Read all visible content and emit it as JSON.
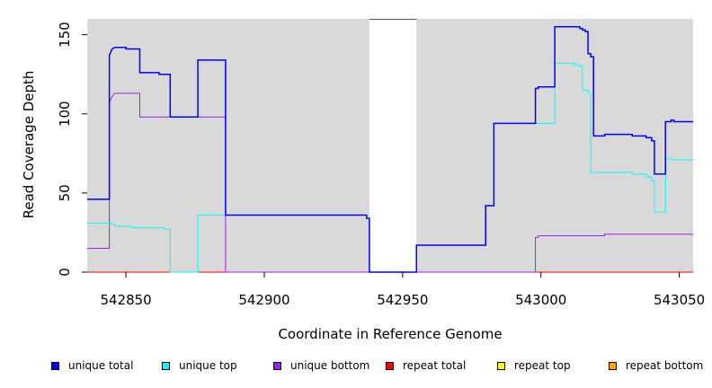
{
  "chart_data": {
    "type": "line",
    "title": "",
    "xlabel": "Coordinate in Reference Genome",
    "ylabel": "Read Coverage Depth",
    "xlim": [
      542836,
      543055
    ],
    "ylim": [
      0,
      160
    ],
    "xticks": [
      542850,
      542900,
      542950,
      543000,
      543050
    ],
    "yticks": [
      0,
      50,
      100,
      150
    ],
    "background_color": "#d9d9d9",
    "gap_region": [
      542938,
      542955
    ],
    "series": [
      {
        "name": "unique total",
        "color": "#0000ff",
        "points": [
          [
            542836,
            46
          ],
          [
            542844,
            46
          ],
          [
            542844,
            137
          ],
          [
            542845,
            141
          ],
          [
            542846,
            142
          ],
          [
            542850,
            142
          ],
          [
            542850,
            141
          ],
          [
            542855,
            141
          ],
          [
            542855,
            126
          ],
          [
            542862,
            126
          ],
          [
            542862,
            125
          ],
          [
            542866,
            125
          ],
          [
            542866,
            98
          ],
          [
            542876,
            98
          ],
          [
            542876,
            134
          ],
          [
            542886,
            134
          ],
          [
            542886,
            36
          ],
          [
            542937,
            36
          ],
          [
            542937,
            34
          ],
          [
            542938,
            34
          ],
          [
            542938,
            0
          ],
          [
            542955,
            0
          ],
          [
            542955,
            17
          ],
          [
            542980,
            17
          ],
          [
            542980,
            42
          ],
          [
            542983,
            42
          ],
          [
            542983,
            94
          ],
          [
            542998,
            94
          ],
          [
            542998,
            116
          ],
          [
            542999,
            116
          ],
          [
            542999,
            117
          ],
          [
            543005,
            117
          ],
          [
            543005,
            155
          ],
          [
            543014,
            155
          ],
          [
            543014,
            154
          ],
          [
            543015,
            154
          ],
          [
            543015,
            153
          ],
          [
            543016,
            153
          ],
          [
            543016,
            152
          ],
          [
            543017,
            152
          ],
          [
            543017,
            138
          ],
          [
            543018,
            138
          ],
          [
            543018,
            136
          ],
          [
            543019,
            136
          ],
          [
            543019,
            86
          ],
          [
            543023,
            86
          ],
          [
            543023,
            87
          ],
          [
            543033,
            87
          ],
          [
            543033,
            86
          ],
          [
            543038,
            86
          ],
          [
            543038,
            85
          ],
          [
            543040,
            85
          ],
          [
            543040,
            83
          ],
          [
            543041,
            83
          ],
          [
            543041,
            62
          ],
          [
            543045,
            62
          ],
          [
            543045,
            95
          ],
          [
            543047,
            95
          ],
          [
            543047,
            96
          ],
          [
            543048,
            96
          ],
          [
            543048,
            95
          ],
          [
            543055,
            95
          ]
        ]
      },
      {
        "name": "unique top",
        "color": "#00ffff",
        "points": [
          [
            542836,
            31
          ],
          [
            542844,
            31
          ],
          [
            542844,
            31
          ],
          [
            542846,
            30
          ],
          [
            542846,
            29
          ],
          [
            542850,
            29
          ],
          [
            542850,
            29
          ],
          [
            542852,
            29
          ],
          [
            542852,
            28
          ],
          [
            542864,
            28
          ],
          [
            542864,
            27
          ],
          [
            542866,
            27
          ],
          [
            542866,
            0
          ],
          [
            542876,
            0
          ],
          [
            542876,
            36
          ],
          [
            542886,
            36
          ],
          [
            542886,
            36
          ],
          [
            542937,
            36
          ],
          [
            542937,
            34
          ],
          [
            542938,
            34
          ],
          [
            542938,
            0
          ],
          [
            542955,
            0
          ],
          [
            542955,
            17
          ],
          [
            542980,
            17
          ],
          [
            542980,
            42
          ],
          [
            542983,
            42
          ],
          [
            542983,
            94
          ],
          [
            542998,
            94
          ],
          [
            542998,
            94
          ],
          [
            543005,
            94
          ],
          [
            543005,
            132
          ],
          [
            543012,
            132
          ],
          [
            543012,
            131
          ],
          [
            543014,
            131
          ],
          [
            543014,
            130
          ],
          [
            543015,
            130
          ],
          [
            543015,
            115
          ],
          [
            543017,
            115
          ],
          [
            543017,
            113
          ],
          [
            543018,
            113
          ],
          [
            543018,
            63
          ],
          [
            543033,
            63
          ],
          [
            543033,
            62
          ],
          [
            543038,
            62
          ],
          [
            543038,
            60
          ],
          [
            543040,
            60
          ],
          [
            543040,
            58
          ],
          [
            543041,
            58
          ],
          [
            543041,
            38
          ],
          [
            543045,
            38
          ],
          [
            543045,
            72
          ],
          [
            543047,
            72
          ],
          [
            543047,
            71
          ],
          [
            543055,
            71
          ]
        ]
      },
      {
        "name": "unique bottom",
        "color": "#a020f0",
        "points": [
          [
            542836,
            15
          ],
          [
            542844,
            15
          ],
          [
            542844,
            107
          ],
          [
            542845,
            111
          ],
          [
            542846,
            113
          ],
          [
            542855,
            113
          ],
          [
            542855,
            98
          ],
          [
            542886,
            98
          ],
          [
            542886,
            0
          ],
          [
            542998,
            0
          ],
          [
            542998,
            22
          ],
          [
            542999,
            22
          ],
          [
            542999,
            23
          ],
          [
            543023,
            23
          ],
          [
            543023,
            24
          ],
          [
            543055,
            24
          ]
        ]
      },
      {
        "name": "repeat total",
        "color": "#ff0000",
        "points": [
          [
            542836,
            0
          ],
          [
            543055,
            0
          ]
        ]
      },
      {
        "name": "repeat top",
        "color": "#ffff00",
        "points": [
          [
            542836,
            0
          ],
          [
            543055,
            0
          ]
        ]
      },
      {
        "name": "repeat bottom",
        "color": "#ffa500",
        "points": [
          [
            542836,
            0
          ],
          [
            543055,
            0
          ]
        ]
      }
    ],
    "legend_position": "bottom"
  },
  "legend": [
    {
      "label": "unique total",
      "color": "#0000ff"
    },
    {
      "label": "unique top",
      "color": "#00ffff"
    },
    {
      "label": "unique bottom",
      "color": "#a020f0"
    },
    {
      "label": "repeat total",
      "color": "#ff0000"
    },
    {
      "label": "repeat top",
      "color": "#ffff00"
    },
    {
      "label": "repeat bottom",
      "color": "#ffa500"
    }
  ]
}
